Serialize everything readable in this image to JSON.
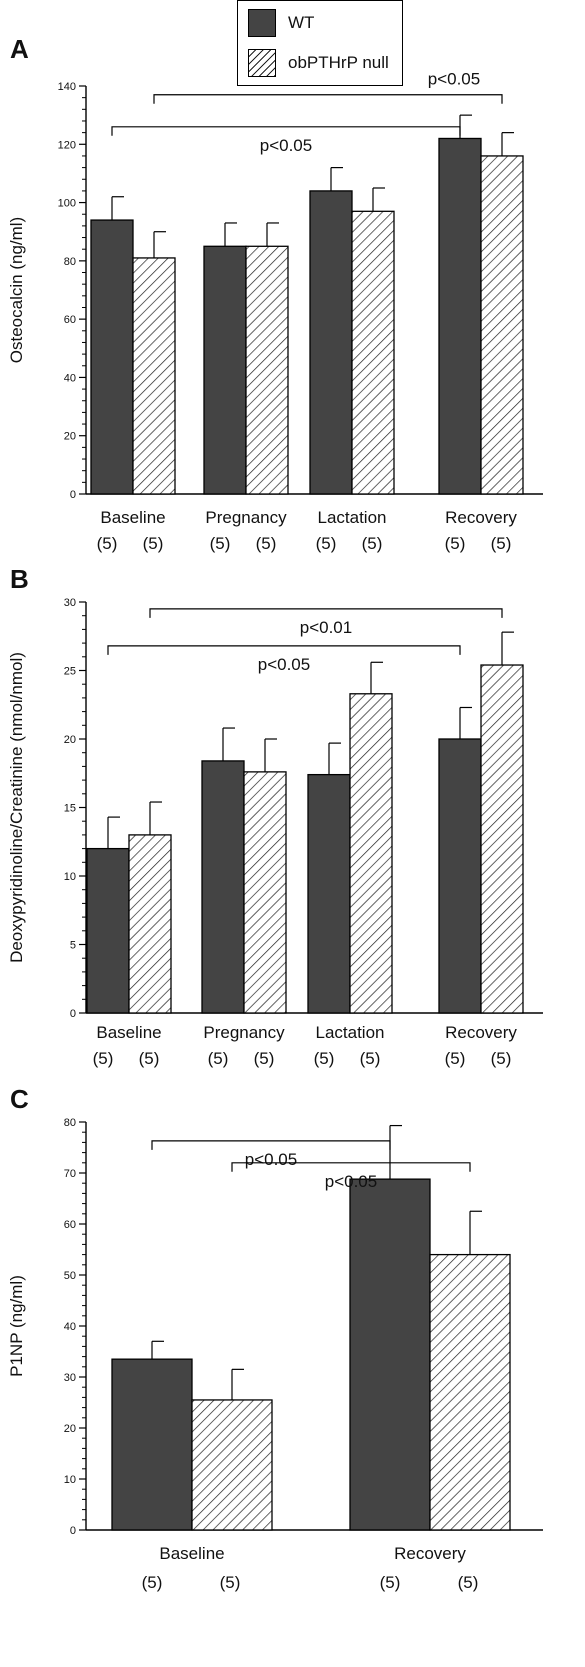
{
  "legend": {
    "items": [
      {
        "label": "WT",
        "style": "solid",
        "color": "#444444"
      },
      {
        "label": "obPTHrP null",
        "style": "hatched",
        "color": "#ffffff"
      }
    ]
  },
  "group_n": "(5)",
  "chart_data": [
    {
      "panel": "A",
      "type": "bar",
      "ylabel": "Osteocalcin (ng/ml)",
      "ylim": [
        0,
        140
      ],
      "yticks": [
        0,
        20,
        40,
        60,
        80,
        100,
        120,
        140
      ],
      "minor_ticks_per_major": 4,
      "categories": [
        "Baseline",
        "Pregnancy",
        "Lactation",
        "Recovery"
      ],
      "n_labels": [
        [
          "(5)",
          "(5)"
        ],
        [
          "(5)",
          "(5)"
        ],
        [
          "(5)",
          "(5)"
        ],
        [
          "(5)",
          "(5)"
        ]
      ],
      "series": [
        {
          "name": "WT",
          "values": [
            94,
            85,
            104,
            122
          ],
          "errors": [
            8,
            8,
            8,
            8
          ]
        },
        {
          "name": "obPTHrP null",
          "values": [
            81,
            85,
            97,
            116
          ],
          "errors": [
            9,
            8,
            8,
            8
          ]
        }
      ],
      "annotations": [
        {
          "text": "p<0.05",
          "from": [
            0,
            1
          ],
          "to": [
            3,
            1
          ],
          "y": 137,
          "label_pos": "right"
        },
        {
          "text": "p<0.05",
          "from": [
            0,
            0
          ],
          "to": [
            3,
            0
          ],
          "y": 126,
          "label_pos": "center"
        }
      ]
    },
    {
      "panel": "B",
      "type": "bar",
      "ylabel": "Deoxypyridinoline/Creatinine (nmol/nmol)",
      "ylim": [
        0,
        30
      ],
      "yticks": [
        0,
        5,
        10,
        15,
        20,
        25,
        30
      ],
      "minor_ticks_per_major": 4,
      "categories": [
        "Baseline",
        "Pregnancy",
        "Lactation",
        "Recovery"
      ],
      "n_labels": [
        [
          "(5)",
          "(5)"
        ],
        [
          "(5)",
          "(5)"
        ],
        [
          "(5)",
          "(5)"
        ],
        [
          "(5)",
          "(5)"
        ]
      ],
      "series": [
        {
          "name": "WT",
          "values": [
            12,
            18.4,
            17.4,
            20
          ],
          "errors": [
            2.3,
            2.4,
            2.3,
            2.3
          ]
        },
        {
          "name": "obPTHrP null",
          "values": [
            13,
            17.6,
            23.3,
            25.4
          ],
          "errors": [
            2.4,
            2.4,
            2.3,
            2.4
          ]
        }
      ],
      "annotations": [
        {
          "text": "p<0.01",
          "from": [
            0,
            1
          ],
          "to": [
            3,
            1
          ],
          "y": 29.5,
          "label_pos": "center"
        },
        {
          "text": "p<0.05",
          "from": [
            0,
            0
          ],
          "to": [
            3,
            0
          ],
          "y": 26.8,
          "label_pos": "center"
        }
      ]
    },
    {
      "panel": "C",
      "type": "bar",
      "ylabel": "P1NP (ng/ml)",
      "ylim": [
        0,
        80
      ],
      "yticks": [
        0,
        10,
        20,
        30,
        40,
        50,
        60,
        70,
        80
      ],
      "minor_ticks_per_major": 4,
      "categories": [
        "Baseline",
        "Recovery"
      ],
      "n_labels": [
        [
          "(5)",
          "(5)"
        ],
        [
          "(5)",
          "(5)"
        ]
      ],
      "series": [
        {
          "name": "WT",
          "values": [
            33.5,
            68.8
          ],
          "errors": [
            3.5,
            10.5
          ]
        },
        {
          "name": "obPTHrP null",
          "values": [
            25.5,
            54
          ],
          "errors": [
            6,
            8.5
          ]
        }
      ],
      "annotations": [
        {
          "text": "p<0.05",
          "from": [
            0,
            0
          ],
          "to": [
            1,
            0
          ],
          "y": 76.3,
          "label_pos": "center"
        },
        {
          "text": "p<0.05",
          "from": [
            0,
            1
          ],
          "to": [
            1,
            1
          ],
          "y": 72,
          "label_pos": "center"
        }
      ]
    }
  ]
}
